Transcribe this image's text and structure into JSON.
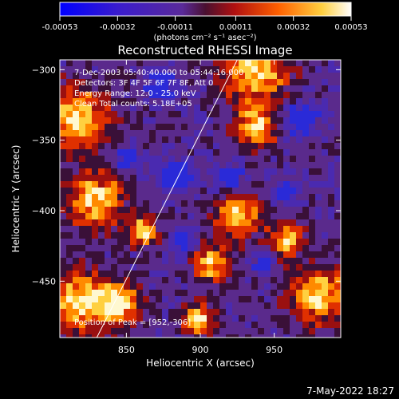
{
  "chart_data": {
    "type": "heatmap",
    "title": "Reconstructed RHESSI Image",
    "xlabel": "Heliocentric X (arcsec)",
    "ylabel": "Heliocentric Y (arcsec)",
    "xlim": [
      805,
      995
    ],
    "ylim": [
      -490,
      -293
    ],
    "x_ticks": [
      850,
      900,
      950
    ],
    "y_ticks": [
      -300,
      -350,
      -400,
      -450
    ],
    "colorbar": {
      "label": "(photons cm⁻² s⁻¹ asec⁻²)",
      "ticks": [
        "-0.00053",
        "-0.00032",
        "-0.00011",
        "0.00011",
        "0.00032",
        "0.00053"
      ],
      "range": [
        -0.00053,
        0.00053
      ]
    },
    "annotations": [
      "7-Dec-2003 05:40:40.000 to 05:44:16.000",
      "Detectors: 3F 4F 5F 6F 7F 8F, Att 0",
      "Energy Range: 12.0 - 25.0 keV",
      "Clean    Total counts: 5.18E+05",
      "Position of Peak = [952,-306]"
    ],
    "limb_line": {
      "x": [
        830,
        925
      ],
      "y": [
        -490,
        -293
      ]
    },
    "timestamp": "7-May-2022 18:27"
  }
}
